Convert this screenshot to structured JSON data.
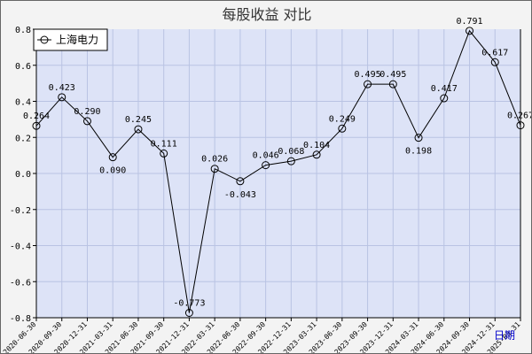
{
  "chart_data": {
    "type": "line",
    "title": "每股收益  对比",
    "xlabel": "日期",
    "ylabel": "",
    "ylim": [
      -0.8,
      0.8
    ],
    "yticks": [
      -0.8,
      -0.6,
      -0.4,
      -0.2,
      0.0,
      0.2,
      0.4,
      0.6,
      0.8
    ],
    "yticks_labels": [
      "-0.8",
      "-0.6",
      "-0.4",
      "-0.2",
      "0.0",
      "0.2",
      "0.4",
      "0.6",
      "0.8"
    ],
    "grid": true,
    "legend_position": "top-left",
    "categories": [
      "2020-06-30",
      "2020-09-30",
      "2020-12-31",
      "2021-03-31",
      "2021-06-30",
      "2021-09-30",
      "2021-12-31",
      "2022-03-31",
      "2022-06-30",
      "2022-09-30",
      "2022-12-31",
      "2023-03-31",
      "2023-06-30",
      "2023-09-30",
      "2023-12-31",
      "2024-03-31",
      "2024-06-30",
      "2024-09-30",
      "2024-12-31",
      "2025-03-31"
    ],
    "series": [
      {
        "name": "上海电力",
        "color": "#000000",
        "values": [
          0.264,
          0.423,
          0.29,
          0.09,
          0.245,
          0.111,
          -0.773,
          0.026,
          -0.043,
          0.046,
          0.068,
          0.104,
          0.249,
          0.495,
          0.495,
          0.198,
          0.417,
          0.791,
          0.617,
          0.267
        ],
        "value_labels": [
          "0.264",
          "0.423",
          "0.290",
          "0.090",
          "0.245",
          "0.111",
          "-0.773",
          "0.026",
          "-0.043",
          "0.046",
          "0.068",
          "0.104",
          "0.249",
          "0.495",
          "0.495",
          "0.198",
          "0.417",
          "0.791",
          "0.617",
          "0.267"
        ]
      }
    ]
  },
  "colors": {
    "plot_bg": "#dde3f7",
    "grid": "#b9c3e3",
    "frame_bg": "#f3f3f3",
    "line": "#000000"
  }
}
